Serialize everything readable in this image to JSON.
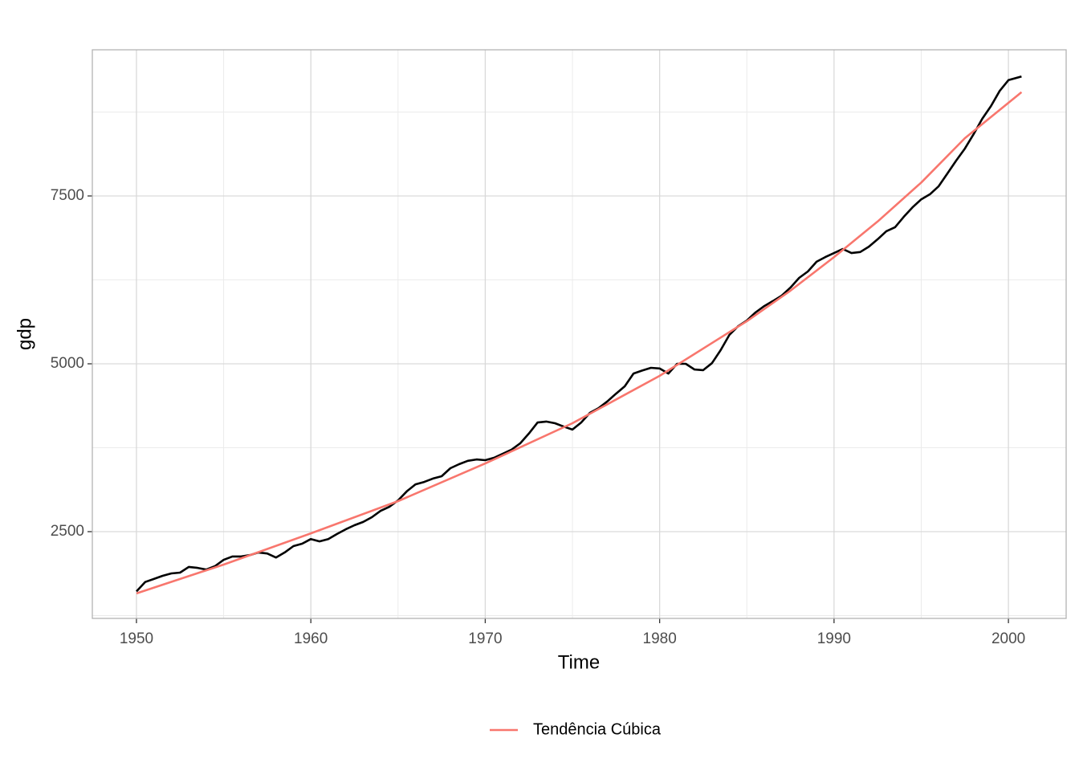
{
  "chart_data": {
    "type": "line",
    "x_label": "Time",
    "y_label": "gdp",
    "xlim": [
      1947.47,
      2003.31
    ],
    "ylim": [
      1208,
      9677
    ],
    "xticks": [
      1950,
      1960,
      1970,
      1980,
      1990,
      2000
    ],
    "yticks": [
      2500,
      5000,
      7500
    ],
    "minor_xticks": [
      1955,
      1965,
      1975,
      1985,
      1995
    ],
    "minor_yticks": [
      1250,
      3750,
      6250,
      8750
    ],
    "grid": true,
    "legend": "bottom",
    "series": [
      {
        "color": "#000000",
        "x": [
          1950,
          1950.5,
          1951,
          1951.5,
          1952,
          1952.5,
          1953,
          1953.5,
          1954,
          1954.5,
          1955,
          1955.5,
          1956,
          1956.5,
          1957,
          1957.5,
          1958,
          1958.5,
          1959,
          1959.5,
          1960,
          1960.5,
          1961,
          1961.5,
          1962,
          1962.5,
          1963,
          1963.5,
          1964,
          1964.5,
          1965,
          1965.5,
          1966,
          1966.5,
          1967,
          1967.5,
          1968,
          1968.5,
          1969,
          1969.5,
          1970,
          1970.5,
          1971,
          1971.5,
          1972,
          1972.5,
          1973,
          1973.5,
          1974,
          1974.5,
          1975,
          1975.5,
          1976,
          1976.5,
          1977,
          1977.5,
          1978,
          1978.5,
          1979,
          1979.5,
          1980,
          1980.5,
          1981,
          1981.5,
          1982,
          1982.5,
          1983,
          1983.5,
          1984,
          1984.5,
          1985,
          1985.5,
          1986,
          1986.5,
          1987,
          1987.5,
          1988,
          1988.5,
          1989,
          1989.5,
          1990,
          1990.5,
          1991,
          1991.5,
          1992,
          1992.5,
          1993,
          1993.5,
          1994,
          1994.5,
          1995,
          1995.5,
          1996,
          1996.5,
          1997,
          1997.5,
          1998,
          1998.5,
          1999,
          1999.5,
          2000,
          2000.75
        ],
        "values": [
          1610,
          1750,
          1795,
          1842,
          1878,
          1890,
          1975,
          1960,
          1935,
          1985,
          2080,
          2130,
          2130,
          2150,
          2190,
          2175,
          2115,
          2190,
          2285,
          2320,
          2390,
          2355,
          2390,
          2465,
          2535,
          2595,
          2645,
          2715,
          2810,
          2870,
          2965,
          3100,
          3205,
          3240,
          3290,
          3325,
          3445,
          3505,
          3555,
          3575,
          3565,
          3600,
          3660,
          3720,
          3815,
          3960,
          4125,
          4140,
          4115,
          4065,
          4020,
          4125,
          4270,
          4340,
          4440,
          4555,
          4665,
          4855,
          4900,
          4940,
          4930,
          4855,
          5000,
          5000,
          4915,
          4905,
          5010,
          5205,
          5430,
          5560,
          5645,
          5765,
          5860,
          5935,
          6015,
          6135,
          6280,
          6375,
          6520,
          6590,
          6650,
          6710,
          6650,
          6665,
          6745,
          6855,
          6975,
          7035,
          7190,
          7330,
          7450,
          7525,
          7645,
          7835,
          8025,
          8205,
          8420,
          8650,
          8840,
          9065,
          9225,
          9280
        ]
      },
      {
        "name": "Tendência Cúbica",
        "color": "#f8766d",
        "x": [
          1950,
          1955,
          1960,
          1965,
          1970,
          1975,
          1980,
          1985,
          1987.5,
          1990,
          1992.5,
          1995,
          1997.5,
          2000.75
        ],
        "values": [
          1580,
          2010,
          2475,
          2955,
          3515,
          4115,
          4820,
          5635,
          6090,
          6590,
          7120,
          7700,
          8360,
          9045
        ]
      }
    ]
  }
}
